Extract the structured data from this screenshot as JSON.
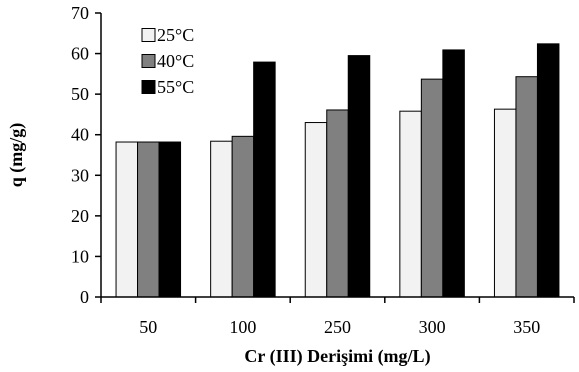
{
  "chart_data": {
    "type": "bar",
    "title": "",
    "xlabel": "Cr (III) Derişimi (mg/L)",
    "ylabel": "q (mg/g)",
    "categories": [
      "50",
      "100",
      "250",
      "300",
      "350"
    ],
    "ylim": [
      0,
      70
    ],
    "yticks": [
      "0",
      "10",
      "20",
      "30",
      "40",
      "50",
      "60",
      "70"
    ],
    "grid": false,
    "legend_position": "top-left",
    "series": [
      {
        "name": "25°C",
        "color": "#f2f2f2",
        "values": [
          38.2,
          38.4,
          43.0,
          45.8,
          46.3
        ]
      },
      {
        "name": "40°C",
        "color": "#808080",
        "values": [
          38.2,
          39.6,
          46.1,
          53.7,
          54.3
        ]
      },
      {
        "name": "55°C",
        "color": "#000000",
        "values": [
          38.2,
          57.9,
          59.5,
          60.9,
          62.4
        ]
      }
    ]
  }
}
